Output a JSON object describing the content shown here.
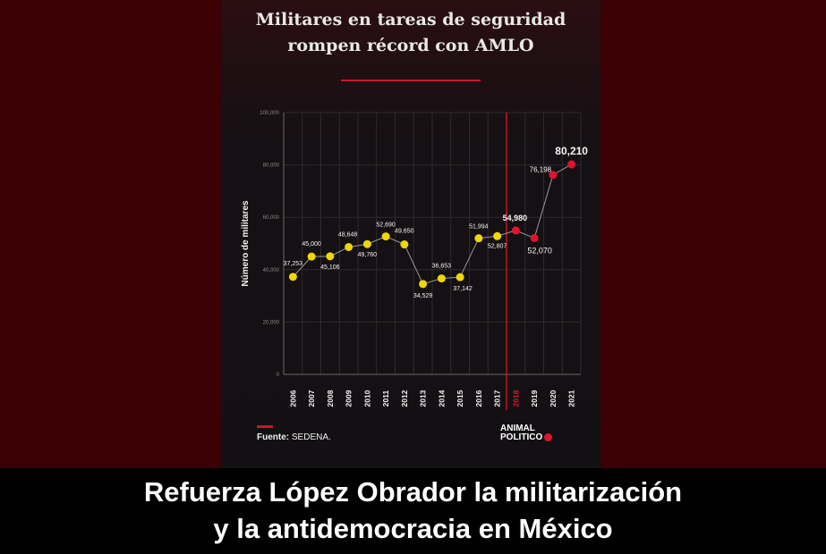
{
  "title": {
    "line1": "Militares en tareas de seguridad",
    "line2": "rompen récord con AMLO"
  },
  "source": {
    "label": "Fuente:",
    "value": "SEDENA."
  },
  "logo": {
    "line1": "ANIMAL",
    "line2": "POLITICO"
  },
  "caption": {
    "line1": "Refuerza López Obrador la militarización",
    "line2": "y la antidemocracia en México"
  },
  "colors": {
    "pre_amlo": "#f2d600",
    "amlo": "#e0142c",
    "line": "#9a9a9a",
    "background": "#3a0004"
  },
  "chart_data": {
    "type": "line",
    "ylabel": "Número de militares",
    "ylim": [
      0,
      100000
    ],
    "yticks": [
      0,
      20000,
      40000,
      60000,
      80000,
      100000
    ],
    "ytick_labels": [
      "0",
      "20,000",
      "40,000",
      "60,000",
      "80,000",
      "100,000"
    ],
    "x": [
      "2006",
      "2007",
      "2008",
      "2009",
      "2010",
      "2011",
      "2012",
      "2013",
      "2014",
      "2015",
      "2016",
      "2017",
      "2018",
      "2019",
      "2020",
      "2021"
    ],
    "values": [
      37253,
      45000,
      45106,
      48648,
      49760,
      52690,
      49650,
      34529,
      36653,
      37142,
      51994,
      52807,
      54980,
      52070,
      76198,
      80210
    ],
    "labels": [
      "37,253",
      "45,000",
      "45,106",
      "48,648",
      "49,760",
      "52,690",
      "49,650",
      "34,529",
      "36,653",
      "37,142",
      "51,994",
      "52,807",
      "54,980",
      "52,070",
      "76,198",
      "80,210"
    ],
    "highlight_from": "2018",
    "grid": true
  }
}
